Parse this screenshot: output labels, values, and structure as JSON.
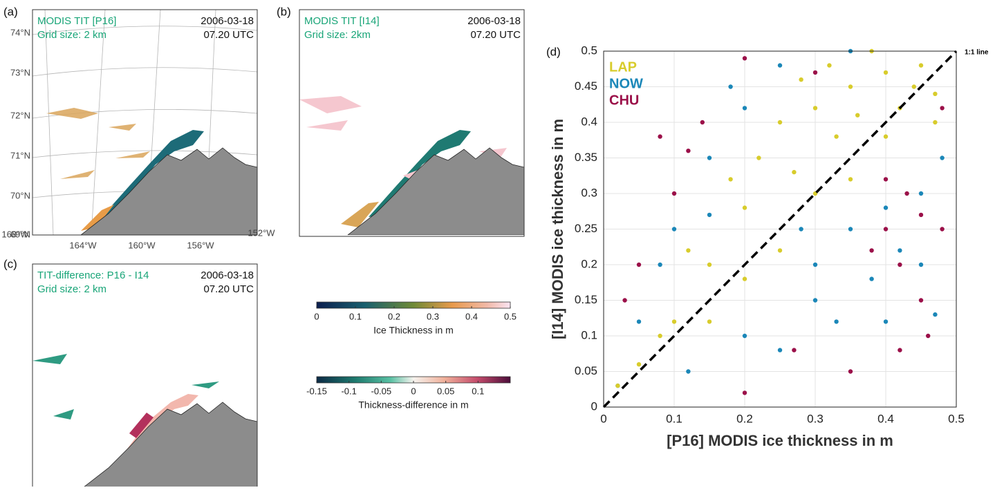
{
  "panels": [
    {
      "label": "(a)",
      "title": "MODIS TIT [P16]",
      "grid": "Grid size: 2 km",
      "date": "2006-03-18",
      "time": "07.20 UTC",
      "lat_labels": [
        "74°N",
        "73°N",
        "72°N",
        "71°N",
        "70°N",
        "69°N"
      ],
      "lon_labels": [
        "168°W",
        "164°W",
        "160°W",
        "156°W",
        "152°W"
      ]
    },
    {
      "label": "(b)",
      "title": "MODIS TIT [I14]",
      "grid": "Grid size: 2km",
      "date": "2006-03-18",
      "time": "07.20 UTC"
    },
    {
      "label": "(c)",
      "title": "TIT-difference: P16 - I14",
      "grid": "Grid size: 2 km",
      "date": "2006-03-18",
      "time": "07.20 UTC"
    }
  ],
  "colorbars": [
    {
      "lim": [
        0,
        0.5
      ],
      "ticks": [
        0,
        0.1,
        0.2,
        0.3,
        0.4,
        0.5
      ],
      "label": "Ice Thickness in m"
    },
    {
      "lim": [
        -0.15,
        0.15
      ],
      "ticks": [
        -0.15,
        -0.1,
        -0.05,
        0,
        0.05,
        0.1
      ],
      "label": "Thickness-difference in m"
    }
  ],
  "chart_data": {
    "type": "scatter",
    "panel_label": "(d)",
    "x_label": "[P16] MODIS ice thickness in m",
    "y_label": "[I14] MODIS ice thickness in m",
    "xlim": [
      0,
      0.5
    ],
    "ylim": [
      0,
      0.5
    ],
    "xticks": [
      0,
      0.1,
      0.2,
      0.3,
      0.4,
      0.5
    ],
    "yticks": [
      0,
      0.05,
      0.1,
      0.15,
      0.2,
      0.25,
      0.3,
      0.35,
      0.4,
      0.45,
      0.5
    ],
    "grid": true,
    "legend": "upper left",
    "reference_line": "1:1 line",
    "series": [
      {
        "name": "LAP",
        "color": "#d8cc2c",
        "x": [
          0.02,
          0.05,
          0.08,
          0.1,
          0.12,
          0.15,
          0.15,
          0.18,
          0.2,
          0.2,
          0.22,
          0.25,
          0.25,
          0.28,
          0.3,
          0.3,
          0.33,
          0.35,
          0.35,
          0.38,
          0.4,
          0.4,
          0.42,
          0.45,
          0.47,
          0.47,
          0.27,
          0.32,
          0.36,
          0.44
        ],
        "y": [
          0.03,
          0.06,
          0.1,
          0.12,
          0.22,
          0.2,
          0.12,
          0.32,
          0.28,
          0.18,
          0.35,
          0.4,
          0.22,
          0.46,
          0.42,
          0.3,
          0.38,
          0.45,
          0.32,
          0.5,
          0.47,
          0.38,
          0.42,
          0.48,
          0.44,
          0.4,
          0.33,
          0.48,
          0.41,
          0.45
        ]
      },
      {
        "name": "NOW",
        "color": "#1b87b8",
        "x": [
          0.02,
          0.05,
          0.08,
          0.1,
          0.12,
          0.15,
          0.15,
          0.18,
          0.2,
          0.2,
          0.25,
          0.25,
          0.3,
          0.3,
          0.33,
          0.35,
          0.35,
          0.38,
          0.4,
          0.42,
          0.45,
          0.45,
          0.47,
          0.48,
          0.4,
          0.28
        ],
        "y": [
          0.03,
          0.12,
          0.2,
          0.25,
          0.05,
          0.35,
          0.27,
          0.45,
          0.42,
          0.1,
          0.48,
          0.08,
          0.2,
          0.15,
          0.12,
          0.25,
          0.5,
          0.18,
          0.28,
          0.22,
          0.3,
          0.2,
          0.13,
          0.35,
          0.12,
          0.25
        ]
      },
      {
        "name": "CHU",
        "color": "#9b1049",
        "x": [
          0.03,
          0.05,
          0.08,
          0.1,
          0.12,
          0.14,
          0.2,
          0.2,
          0.27,
          0.3,
          0.35,
          0.38,
          0.4,
          0.4,
          0.42,
          0.42,
          0.43,
          0.45,
          0.45,
          0.46,
          0.48,
          0.48
        ],
        "y": [
          0.15,
          0.2,
          0.38,
          0.3,
          0.36,
          0.4,
          0.49,
          0.02,
          0.08,
          0.47,
          0.05,
          0.22,
          0.25,
          0.32,
          0.2,
          0.08,
          0.3,
          0.27,
          0.15,
          0.1,
          0.25,
          0.42
        ]
      }
    ]
  }
}
